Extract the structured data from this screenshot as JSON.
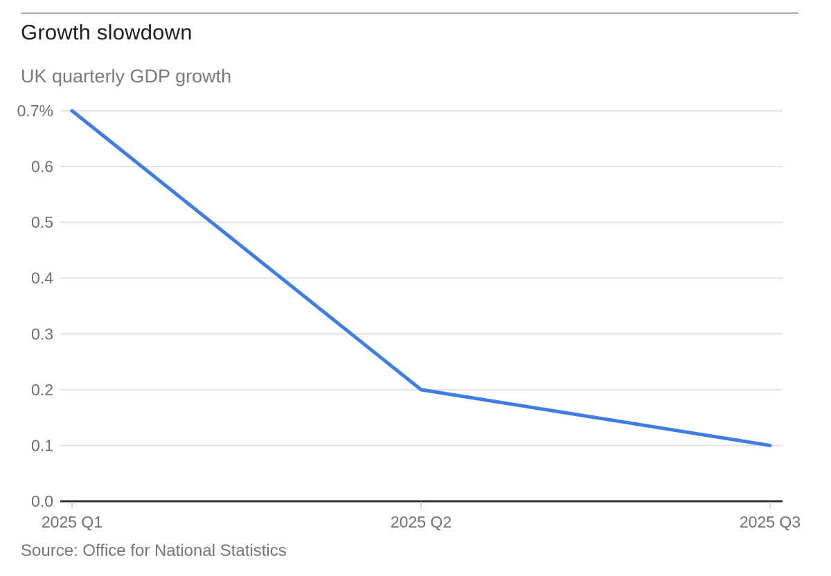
{
  "header": {
    "title": "Growth slowdown",
    "subtitle": "UK quarterly GDP growth",
    "source": "Source: Office for National Statistics"
  },
  "chart_data": {
    "type": "line",
    "title": "Growth slowdown",
    "subtitle": "UK quarterly GDP growth",
    "source": "Source: Office for National Statistics",
    "categories": [
      "2025 Q1",
      "2025 Q2",
      "2025 Q3"
    ],
    "series": [
      {
        "name": "UK quarterly GDP growth",
        "values": [
          0.7,
          0.2,
          0.1
        ]
      }
    ],
    "xlabel": "",
    "ylabel": "",
    "ylim": [
      0.0,
      0.7
    ],
    "y_ticks": [
      0.0,
      0.1,
      0.2,
      0.3,
      0.4,
      0.5,
      0.6,
      0.7
    ],
    "y_tick_top_suffix": "%",
    "grid": true,
    "legend_position": "none",
    "colors": {
      "line": "#3E7DE4",
      "grid": "#e2e2e2",
      "axis": "#2e2e2e",
      "tick": "#d4d4d4",
      "axis_label": "#6f6f6f"
    }
  }
}
